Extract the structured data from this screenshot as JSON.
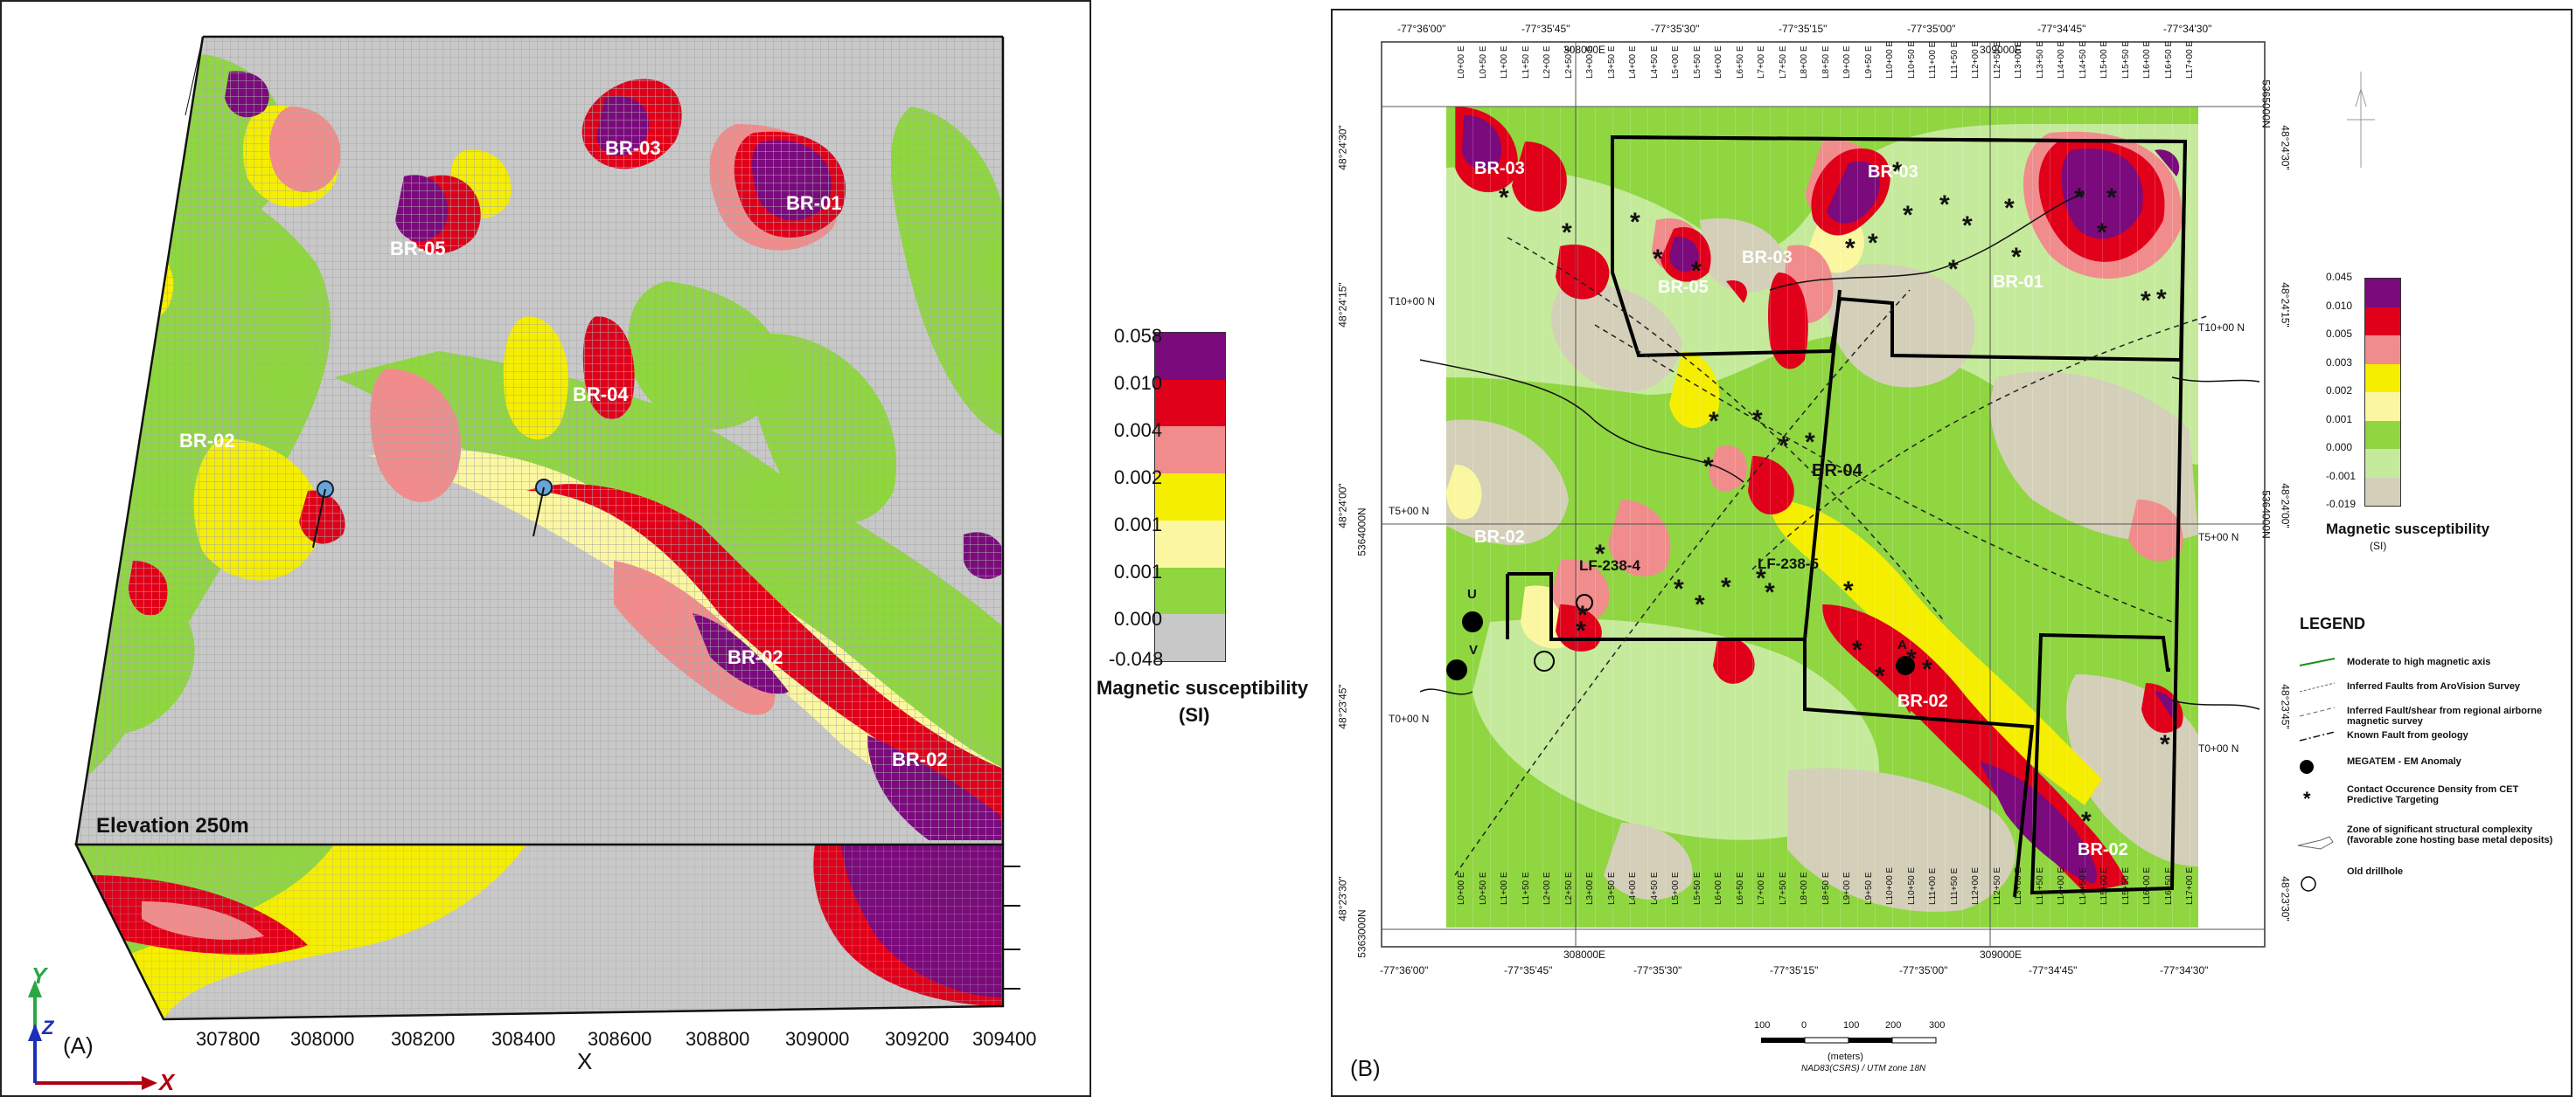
{
  "panelA": {
    "label": "(A)",
    "elevation": "Elevation 250m",
    "xaxis_label": "X",
    "y_label": "Y",
    "z_label": "Z",
    "x_ticks": [
      "307800",
      "308000",
      "308200",
      "308400",
      "308600",
      "308800",
      "309000",
      "309200",
      "309400"
    ],
    "anomaly_labels": [
      "BR-03",
      "BR-01",
      "BR-05",
      "BR-04",
      "BR-02",
      "BR-02",
      "BR-02"
    ],
    "legend": {
      "title": "Magnetic susceptibility",
      "units": "(SI)",
      "values": [
        "0.058",
        "0.010",
        "0.004",
        "0.002",
        "0.001",
        "0.001",
        "0.000",
        "-0.048"
      ],
      "colors": [
        "#7b0a7d",
        "#e0001a",
        "#f08c8c",
        "#f5ee00",
        "#fbf7a0",
        "#8fd641",
        "#c8c8c8"
      ]
    }
  },
  "panelB": {
    "label": "(B)",
    "top_lon": [
      "-77°36'00\"",
      "-77°35'45\"",
      "-77°35'30\"",
      "-77°35'15\"",
      "-77°35'00\"",
      "-77°34'45\"",
      "-77°34'30\""
    ],
    "bottom_lon": [
      "-77°36'00\"",
      "-77°35'45\"",
      "-77°35'30\"",
      "-77°35'15\"",
      "-77°35'00\"",
      "-77°34'45\"",
      "-77°34'30\""
    ],
    "top_east": [
      "308000E",
      "309000E"
    ],
    "bottom_east": [
      "308000E",
      "309000E"
    ],
    "left_lat": [
      "48°24'30\"",
      "48°24'15\"",
      "48°24'00\"",
      "48°23'45\"",
      "48°23'30\""
    ],
    "right_lat": [
      "48°24'30\"",
      "48°24'15\"",
      "48°24'00\"",
      "48°23'45\"",
      "48°23'30\""
    ],
    "northings": [
      "5365000N",
      "5364000N",
      "5363000N"
    ],
    "tie_lines": [
      "T10+00 N",
      "T5+00 N",
      "T0+00 N"
    ],
    "lines_top": [
      "L0+00 E",
      "L0+50 E",
      "L1+00 E",
      "L1+50 E",
      "L2+00 E",
      "L2+50 E",
      "L3+00 E",
      "L3+50 E",
      "L4+00 E",
      "L4+50 E",
      "L5+00 E",
      "L5+50 E",
      "L6+00 E",
      "L6+50 E",
      "L7+00 E",
      "L7+50 E",
      "L8+00 E",
      "L8+50 E",
      "L9+00 E",
      "L9+50 E",
      "L10+00 E",
      "L10+50 E",
      "L11+00 E",
      "L11+50 E",
      "L12+00 E",
      "L12+50 E",
      "L13+00 E",
      "L13+50 E",
      "L14+00 E",
      "L14+50 E",
      "L15+00 E",
      "L15+50 E",
      "L16+00 E",
      "L16+50 E",
      "L17+00 E"
    ],
    "anomaly_labels": [
      "BR-03",
      "BR-03",
      "BR-05",
      "BR-03",
      "BR-01",
      "BR-04",
      "BR-02",
      "BR-02",
      "BR-02"
    ],
    "drillholes": [
      "LF-238-4",
      "LF-238-5"
    ],
    "em_labels": [
      "U",
      "V",
      "A"
    ],
    "scale_bar": [
      "100",
      "0",
      "100",
      "200",
      "300"
    ],
    "scale_units": "(meters)",
    "datum": "NAD83(CSRS) / UTM zone 18N",
    "legend": {
      "title": "Magnetic susceptibility",
      "units": "(SI)",
      "values": [
        "0.045",
        "0.010",
        "0.005",
        "0.003",
        "0.002",
        "0.001",
        "0.000",
        "-0.001",
        "-0.019"
      ],
      "colors": [
        "#7b0a7d",
        "#e0001a",
        "#f08c8c",
        "#f5ee00",
        "#fbf7a0",
        "#8fd641",
        "#c5ea9c",
        "#d4cfb8"
      ]
    },
    "map_legend": {
      "title": "LEGEND",
      "items": [
        "Moderate to high magnetic axis",
        "Inferred Faults from AroVision Survey",
        "Inferred Fault/shear from regional airborne magnetic survey",
        "Known Fault from geology",
        "MEGATEM - EM Anomaly",
        "Contact Occurence Density from CET Predictive Targeting",
        "Zone of significant structural complexity (favorable zone hosting base metal deposits)",
        "Old drillhole"
      ]
    }
  }
}
